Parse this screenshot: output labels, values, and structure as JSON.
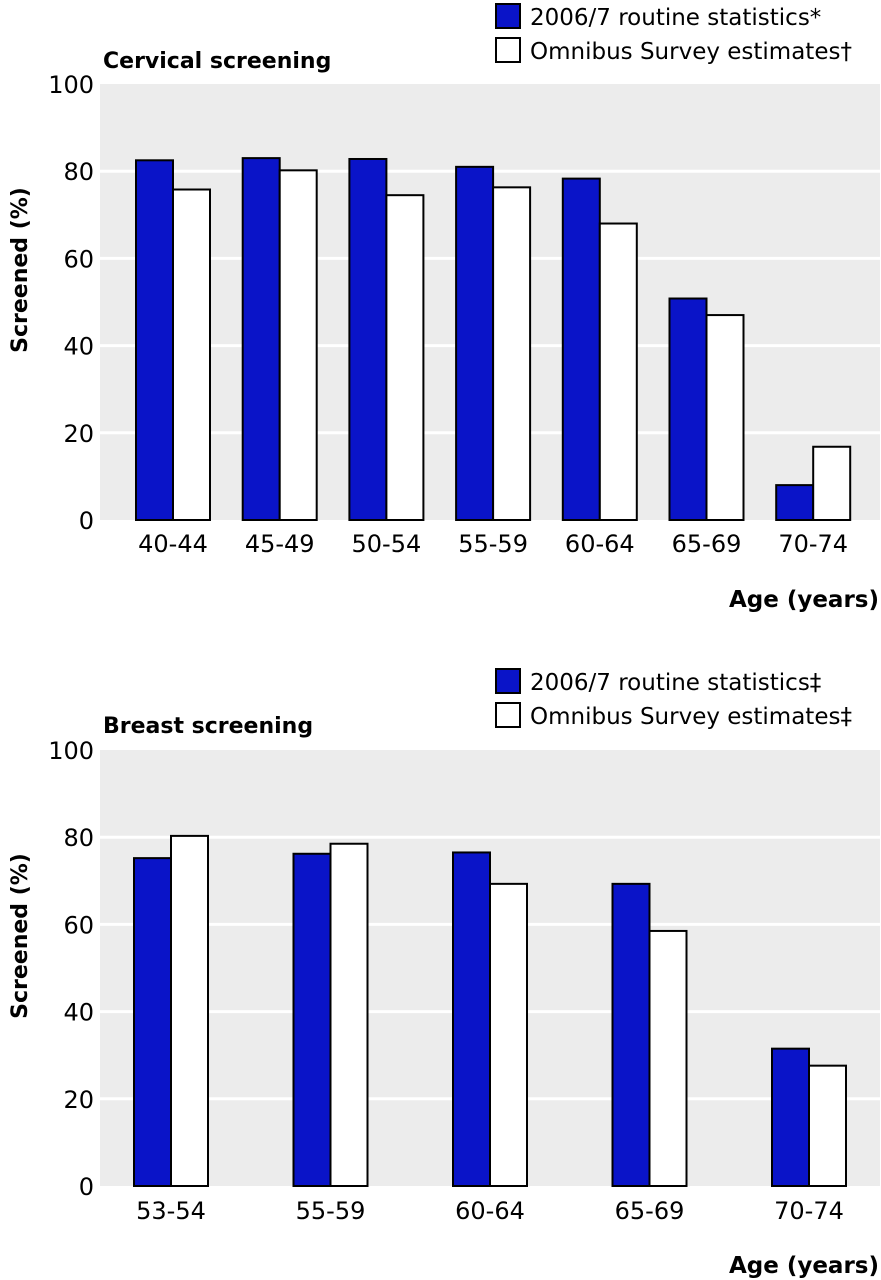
{
  "colors": {
    "series_a": "#0a14c8",
    "series_b": "#ffffff",
    "plot_bg": "#ececec",
    "grid": "#ffffff"
  },
  "chart_data": [
    {
      "type": "bar",
      "title": "Cervical screening",
      "xlabel": "Age (years)",
      "ylabel": "Screened (%)",
      "ylim": [
        0,
        100
      ],
      "yticks": [
        "0",
        "20",
        "40",
        "60",
        "80",
        "100"
      ],
      "grid": true,
      "legend_position": "top-right",
      "categories": [
        "40-44",
        "45-49",
        "50-54",
        "55-59",
        "60-64",
        "65-69",
        "70-74"
      ],
      "series": [
        {
          "name": "2006/7 routine statistics*",
          "values": [
            82.5,
            83,
            82.8,
            81,
            78.3,
            50.8,
            8
          ]
        },
        {
          "name": "Omnibus Survey estimates†",
          "values": [
            75.8,
            80.2,
            74.5,
            76.3,
            68,
            47,
            16.8
          ]
        }
      ]
    },
    {
      "type": "bar",
      "title": "Breast screening",
      "xlabel": "Age (years)",
      "ylabel": "Screened (%)",
      "ylim": [
        0,
        100
      ],
      "yticks": [
        "0",
        "20",
        "40",
        "60",
        "80",
        "100"
      ],
      "grid": true,
      "legend_position": "top-right",
      "categories": [
        "53-54",
        "55-59",
        "60-64",
        "65-69",
        "70-74"
      ],
      "series": [
        {
          "name": "2006/7 routine statistics‡",
          "values": [
            75.2,
            76.2,
            76.5,
            69.3,
            31.5
          ]
        },
        {
          "name": "Omnibus Survey estimates‡",
          "values": [
            80.3,
            78.5,
            69.3,
            58.5,
            27.6
          ]
        }
      ]
    }
  ]
}
